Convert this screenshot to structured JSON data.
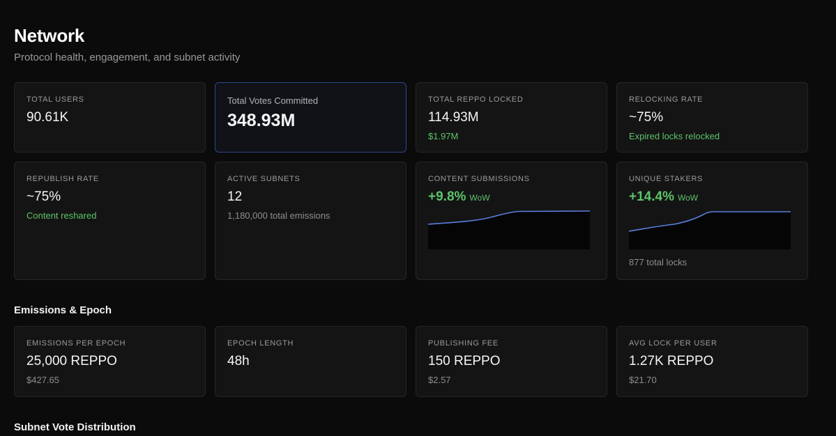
{
  "header": {
    "title": "Network",
    "subtitle": "Protocol health, engagement, and subnet activity"
  },
  "stats_row1": [
    {
      "label": "TOTAL USERS",
      "value": "90.61K"
    },
    {
      "label": "Total Votes Committed",
      "value": "348.93M"
    },
    {
      "label": "TOTAL REPPO LOCKED",
      "value": "114.93M",
      "sub": "$1.97M"
    },
    {
      "label": "RELOCKING RATE",
      "value": "~75%",
      "sub": "Expired locks relocked"
    }
  ],
  "stats_row2": {
    "republish": {
      "label": "REPUBLISH RATE",
      "value": "~75%",
      "sub": "Content reshared"
    },
    "subnets": {
      "label": "ACTIVE SUBNETS",
      "value": "12",
      "sub": "1,180,000 total emissions"
    },
    "content": {
      "label": "CONTENT SUBMISSIONS",
      "pct": "+9.8%",
      "wow": "WoW"
    },
    "stakers": {
      "label": "UNIQUE STAKERS",
      "pct": "+14.4%",
      "wow": "WoW",
      "foot": "877 total locks"
    }
  },
  "emissions": {
    "title": "Emissions & Epoch",
    "cards": [
      {
        "label": "EMISSIONS PER EPOCH",
        "value": "25,000 REPPO",
        "sub": "$427.65"
      },
      {
        "label": "EPOCH LENGTH",
        "value": "48h"
      },
      {
        "label": "PUBLISHING FEE",
        "value": "150 REPPO",
        "sub": "$2.57"
      },
      {
        "label": "AVG LOCK PER USER",
        "value": "1.27K REPPO",
        "sub": "$21.70"
      }
    ]
  },
  "distribution": {
    "title": "Subnet Vote Distribution"
  },
  "colors": {
    "accent_green": "#5cc46a",
    "line_blue": "#5b7fe0",
    "highlight_border": "#2b4a8c"
  }
}
